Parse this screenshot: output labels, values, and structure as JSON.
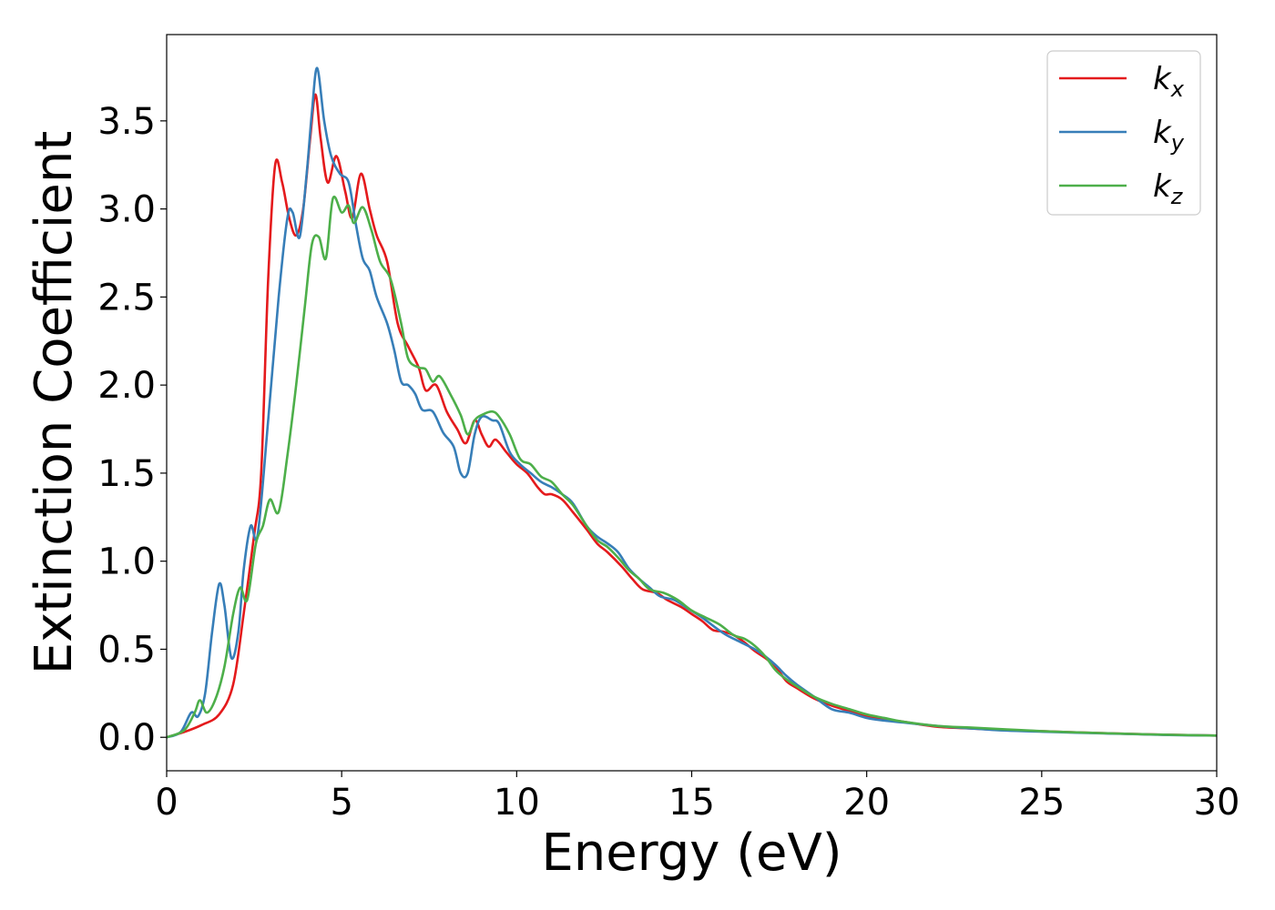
{
  "chart_data": {
    "type": "line",
    "xlabel": "Energy (eV)",
    "ylabel": "Extinction Coefficient",
    "xlim": [
      0,
      30
    ],
    "ylim": [
      -0.19,
      3.99
    ],
    "xticks": [
      0,
      5,
      10,
      15,
      20,
      25,
      30
    ],
    "yticks": [
      0.0,
      0.5,
      1.0,
      1.5,
      2.0,
      2.5,
      3.0,
      3.5
    ],
    "xtick_labels": [
      "0",
      "5",
      "10",
      "15",
      "20",
      "25",
      "30"
    ],
    "ytick_labels": [
      "0.0",
      "0.5",
      "1.0",
      "1.5",
      "2.0",
      "2.5",
      "3.0",
      "3.5"
    ],
    "grid": false,
    "legend_position": "top-right",
    "series": [
      {
        "name": "k_x",
        "legend_base": "k",
        "legend_sub": "x",
        "color": "#e41a1c",
        "points": [
          [
            0,
            0
          ],
          [
            0.5,
            0.03
          ],
          [
            1.0,
            0.07
          ],
          [
            1.5,
            0.13
          ],
          [
            1.9,
            0.3
          ],
          [
            2.2,
            0.7
          ],
          [
            2.5,
            1.15
          ],
          [
            2.7,
            1.5
          ],
          [
            2.9,
            2.6
          ],
          [
            3.1,
            3.25
          ],
          [
            3.3,
            3.15
          ],
          [
            3.5,
            2.95
          ],
          [
            3.7,
            2.85
          ],
          [
            3.9,
            3.0
          ],
          [
            4.1,
            3.4
          ],
          [
            4.25,
            3.65
          ],
          [
            4.4,
            3.4
          ],
          [
            4.6,
            3.15
          ],
          [
            4.85,
            3.3
          ],
          [
            5.1,
            3.1
          ],
          [
            5.3,
            2.95
          ],
          [
            5.55,
            3.2
          ],
          [
            5.8,
            3.0
          ],
          [
            6.0,
            2.85
          ],
          [
            6.3,
            2.7
          ],
          [
            6.6,
            2.35
          ],
          [
            6.9,
            2.22
          ],
          [
            7.2,
            2.1
          ],
          [
            7.4,
            1.97
          ],
          [
            7.7,
            2.0
          ],
          [
            8.0,
            1.85
          ],
          [
            8.3,
            1.75
          ],
          [
            8.55,
            1.67
          ],
          [
            8.8,
            1.8
          ],
          [
            9.0,
            1.72
          ],
          [
            9.2,
            1.65
          ],
          [
            9.4,
            1.69
          ],
          [
            9.7,
            1.62
          ],
          [
            10.0,
            1.55
          ],
          [
            10.3,
            1.5
          ],
          [
            10.6,
            1.42
          ],
          [
            10.8,
            1.38
          ],
          [
            11.0,
            1.38
          ],
          [
            11.3,
            1.35
          ],
          [
            11.6,
            1.28
          ],
          [
            12.0,
            1.18
          ],
          [
            12.3,
            1.1
          ],
          [
            12.6,
            1.05
          ],
          [
            13.0,
            0.97
          ],
          [
            13.3,
            0.9
          ],
          [
            13.6,
            0.84
          ],
          [
            14.0,
            0.82
          ],
          [
            14.3,
            0.78
          ],
          [
            14.7,
            0.74
          ],
          [
            15.0,
            0.7
          ],
          [
            15.3,
            0.66
          ],
          [
            15.6,
            0.61
          ],
          [
            15.9,
            0.6
          ],
          [
            16.2,
            0.58
          ],
          [
            16.5,
            0.54
          ],
          [
            16.8,
            0.49
          ],
          [
            17.1,
            0.45
          ],
          [
            17.4,
            0.4
          ],
          [
            17.7,
            0.32
          ],
          [
            18.0,
            0.28
          ],
          [
            18.5,
            0.22
          ],
          [
            19.0,
            0.18
          ],
          [
            19.5,
            0.15
          ],
          [
            20.0,
            0.12
          ],
          [
            20.5,
            0.1
          ],
          [
            21.0,
            0.09
          ],
          [
            22.0,
            0.06
          ],
          [
            23.0,
            0.05
          ],
          [
            24.0,
            0.04
          ],
          [
            25.0,
            0.035
          ],
          [
            26.0,
            0.028
          ],
          [
            27.0,
            0.022
          ],
          [
            28.0,
            0.017
          ],
          [
            29.0,
            0.013
          ],
          [
            30.0,
            0.01
          ]
        ]
      },
      {
        "name": "k_y",
        "legend_base": "k",
        "legend_sub": "y",
        "color": "#377eb8",
        "points": [
          [
            0,
            0
          ],
          [
            0.4,
            0.03
          ],
          [
            0.7,
            0.14
          ],
          [
            0.9,
            0.12
          ],
          [
            1.1,
            0.25
          ],
          [
            1.3,
            0.6
          ],
          [
            1.5,
            0.87
          ],
          [
            1.65,
            0.75
          ],
          [
            1.85,
            0.45
          ],
          [
            2.05,
            0.6
          ],
          [
            2.2,
            0.95
          ],
          [
            2.4,
            1.2
          ],
          [
            2.6,
            1.15
          ],
          [
            2.9,
            1.8
          ],
          [
            3.2,
            2.5
          ],
          [
            3.45,
            2.95
          ],
          [
            3.6,
            2.98
          ],
          [
            3.8,
            2.84
          ],
          [
            4.0,
            3.2
          ],
          [
            4.15,
            3.55
          ],
          [
            4.3,
            3.8
          ],
          [
            4.5,
            3.5
          ],
          [
            4.7,
            3.3
          ],
          [
            4.95,
            3.2
          ],
          [
            5.2,
            3.15
          ],
          [
            5.4,
            2.92
          ],
          [
            5.6,
            2.72
          ],
          [
            5.8,
            2.65
          ],
          [
            6.0,
            2.5
          ],
          [
            6.3,
            2.35
          ],
          [
            6.5,
            2.2
          ],
          [
            6.7,
            2.02
          ],
          [
            6.9,
            2.0
          ],
          [
            7.1,
            1.95
          ],
          [
            7.3,
            1.86
          ],
          [
            7.6,
            1.85
          ],
          [
            7.9,
            1.73
          ],
          [
            8.2,
            1.65
          ],
          [
            8.4,
            1.5
          ],
          [
            8.6,
            1.5
          ],
          [
            8.8,
            1.72
          ],
          [
            9.0,
            1.82
          ],
          [
            9.3,
            1.8
          ],
          [
            9.5,
            1.78
          ],
          [
            9.8,
            1.62
          ],
          [
            10.1,
            1.55
          ],
          [
            10.4,
            1.5
          ],
          [
            10.7,
            1.45
          ],
          [
            11.0,
            1.42
          ],
          [
            11.3,
            1.38
          ],
          [
            11.6,
            1.33
          ],
          [
            12.0,
            1.2
          ],
          [
            12.3,
            1.14
          ],
          [
            12.6,
            1.1
          ],
          [
            12.9,
            1.05
          ],
          [
            13.2,
            0.96
          ],
          [
            13.5,
            0.9
          ],
          [
            13.8,
            0.85
          ],
          [
            14.1,
            0.8
          ],
          [
            14.5,
            0.78
          ],
          [
            14.9,
            0.73
          ],
          [
            15.3,
            0.68
          ],
          [
            15.7,
            0.62
          ],
          [
            16.0,
            0.58
          ],
          [
            16.4,
            0.54
          ],
          [
            16.8,
            0.5
          ],
          [
            17.1,
            0.46
          ],
          [
            17.4,
            0.41
          ],
          [
            17.7,
            0.35
          ],
          [
            18.0,
            0.3
          ],
          [
            18.5,
            0.23
          ],
          [
            19.0,
            0.16
          ],
          [
            19.5,
            0.14
          ],
          [
            20.0,
            0.11
          ],
          [
            20.5,
            0.095
          ],
          [
            21.0,
            0.085
          ],
          [
            22.0,
            0.065
          ],
          [
            23.0,
            0.05
          ],
          [
            24.0,
            0.038
          ],
          [
            25.0,
            0.032
          ],
          [
            26.0,
            0.026
          ],
          [
            27.0,
            0.021
          ],
          [
            28.0,
            0.016
          ],
          [
            29.0,
            0.012
          ],
          [
            30.0,
            0.01
          ]
        ]
      },
      {
        "name": "k_z",
        "legend_base": "k",
        "legend_sub": "z",
        "color": "#4daf4a",
        "points": [
          [
            0,
            0
          ],
          [
            0.5,
            0.04
          ],
          [
            0.8,
            0.14
          ],
          [
            0.95,
            0.21
          ],
          [
            1.15,
            0.14
          ],
          [
            1.4,
            0.22
          ],
          [
            1.65,
            0.4
          ],
          [
            1.9,
            0.7
          ],
          [
            2.1,
            0.85
          ],
          [
            2.3,
            0.78
          ],
          [
            2.55,
            1.1
          ],
          [
            2.75,
            1.2
          ],
          [
            2.95,
            1.35
          ],
          [
            3.2,
            1.28
          ],
          [
            3.45,
            1.6
          ],
          [
            3.7,
            2.0
          ],
          [
            3.95,
            2.45
          ],
          [
            4.15,
            2.8
          ],
          [
            4.35,
            2.84
          ],
          [
            4.55,
            2.72
          ],
          [
            4.75,
            3.06
          ],
          [
            5.0,
            2.98
          ],
          [
            5.2,
            3.02
          ],
          [
            5.35,
            2.92
          ],
          [
            5.6,
            3.01
          ],
          [
            5.85,
            2.88
          ],
          [
            6.1,
            2.7
          ],
          [
            6.4,
            2.6
          ],
          [
            6.7,
            2.35
          ],
          [
            6.9,
            2.15
          ],
          [
            7.2,
            2.1
          ],
          [
            7.4,
            2.09
          ],
          [
            7.6,
            2.02
          ],
          [
            7.8,
            2.05
          ],
          [
            8.1,
            1.95
          ],
          [
            8.4,
            1.83
          ],
          [
            8.6,
            1.72
          ],
          [
            8.8,
            1.8
          ],
          [
            9.0,
            1.83
          ],
          [
            9.3,
            1.85
          ],
          [
            9.5,
            1.82
          ],
          [
            9.8,
            1.72
          ],
          [
            10.1,
            1.58
          ],
          [
            10.4,
            1.55
          ],
          [
            10.7,
            1.48
          ],
          [
            11.0,
            1.45
          ],
          [
            11.3,
            1.38
          ],
          [
            11.6,
            1.32
          ],
          [
            12.0,
            1.2
          ],
          [
            12.3,
            1.12
          ],
          [
            12.6,
            1.08
          ],
          [
            12.9,
            1.02
          ],
          [
            13.2,
            0.95
          ],
          [
            13.5,
            0.9
          ],
          [
            13.8,
            0.84
          ],
          [
            14.2,
            0.82
          ],
          [
            14.6,
            0.78
          ],
          [
            15.0,
            0.72
          ],
          [
            15.4,
            0.68
          ],
          [
            15.8,
            0.64
          ],
          [
            16.2,
            0.58
          ],
          [
            16.5,
            0.56
          ],
          [
            16.8,
            0.52
          ],
          [
            17.1,
            0.46
          ],
          [
            17.4,
            0.38
          ],
          [
            17.7,
            0.33
          ],
          [
            18.0,
            0.29
          ],
          [
            18.5,
            0.23
          ],
          [
            19.0,
            0.19
          ],
          [
            19.5,
            0.16
          ],
          [
            20.0,
            0.13
          ],
          [
            20.5,
            0.11
          ],
          [
            21.0,
            0.09
          ],
          [
            22.0,
            0.065
          ],
          [
            23.0,
            0.055
          ],
          [
            24.0,
            0.045
          ],
          [
            25.0,
            0.035
          ],
          [
            26.0,
            0.028
          ],
          [
            27.0,
            0.022
          ],
          [
            28.0,
            0.017
          ],
          [
            29.0,
            0.013
          ],
          [
            30.0,
            0.01
          ]
        ]
      }
    ]
  }
}
